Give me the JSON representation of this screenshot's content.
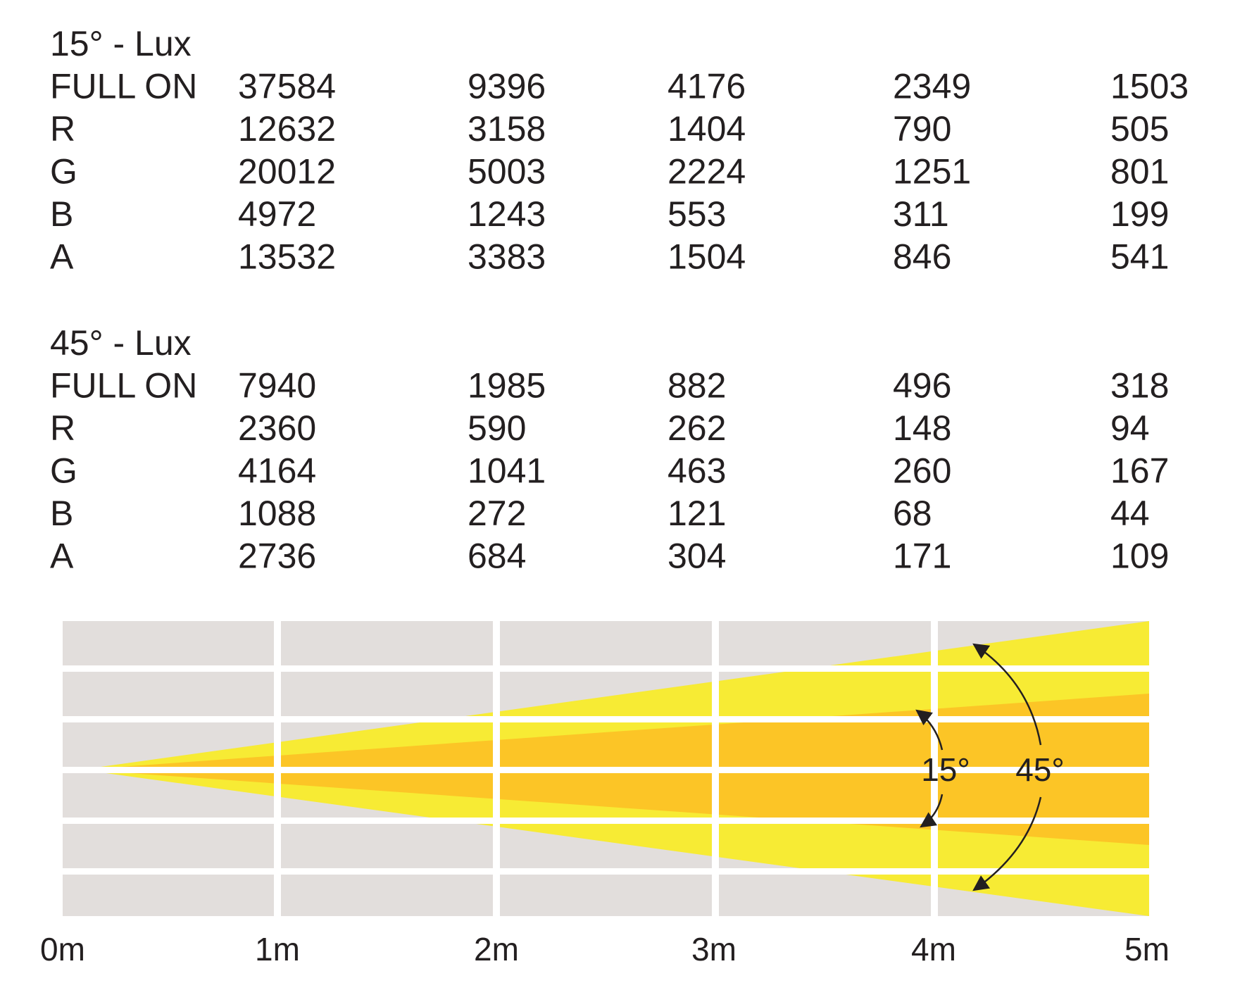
{
  "tables": [
    {
      "title": "15° - Lux",
      "rows": [
        [
          "FULL ON",
          37584,
          9396,
          4176,
          2349,
          1503
        ],
        [
          "R",
          12632,
          3158,
          1404,
          790,
          505
        ],
        [
          "G",
          20012,
          5003,
          2224,
          1251,
          801
        ],
        [
          "B",
          4972,
          1243,
          553,
          311,
          199
        ],
        [
          "A",
          13532,
          3383,
          1504,
          846,
          541
        ]
      ]
    },
    {
      "title": "45° - Lux",
      "rows": [
        [
          "FULL ON",
          7940,
          1985,
          882,
          496,
          318
        ],
        [
          "R",
          2360,
          590,
          262,
          148,
          94
        ],
        [
          "G",
          4164,
          1041,
          463,
          260,
          167
        ],
        [
          "B",
          1088,
          272,
          121,
          68,
          44
        ],
        [
          "A",
          2736,
          684,
          304,
          171,
          109
        ]
      ]
    }
  ],
  "diagram": {
    "distances": [
      "0m",
      "1m",
      "2m",
      "3m",
      "4m",
      "5m"
    ],
    "angles": [
      "15°",
      "45°"
    ]
  }
}
